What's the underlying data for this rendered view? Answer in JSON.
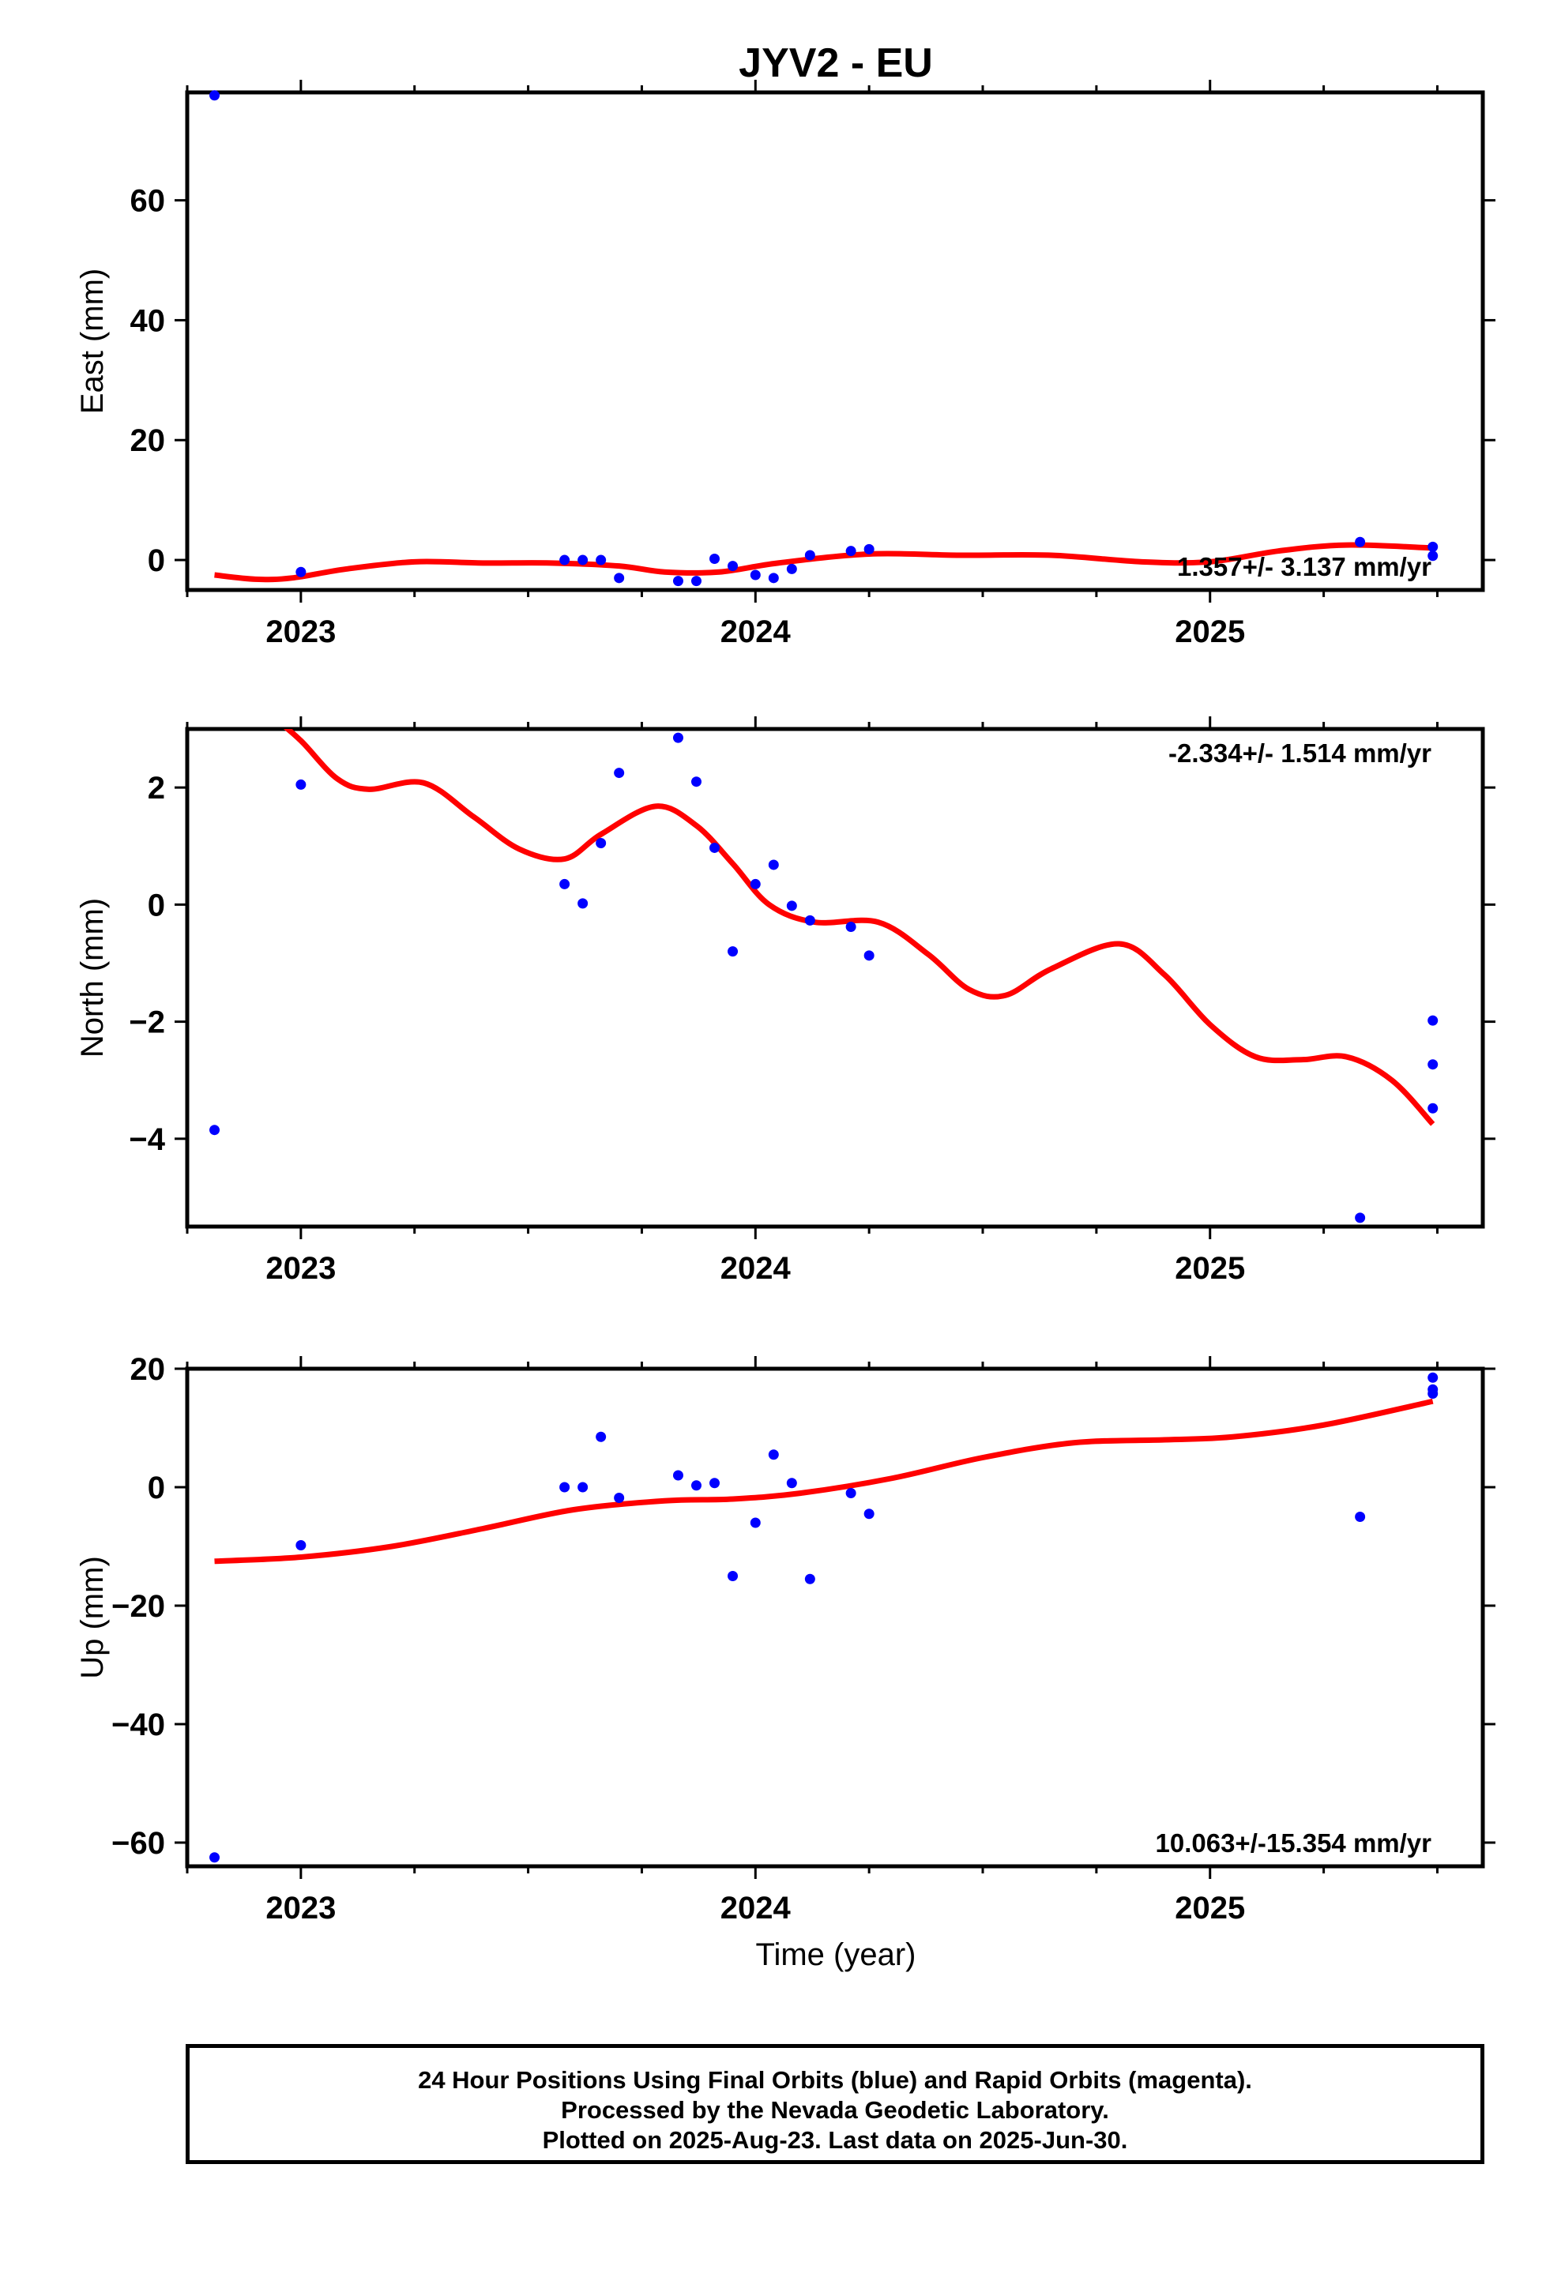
{
  "title": "JYV2 - EU",
  "x_label": "Time (year)",
  "colors": {
    "final_orbits": "#0000ff",
    "fit_line": "#ff0000",
    "axes": "#000000"
  },
  "footer": {
    "line1": "24 Hour Positions Using Final Orbits (blue) and Rapid Orbits (magenta).",
    "line2": "Processed by the Nevada Geodetic Laboratory.",
    "line3": "Plotted on 2025-Aug-23. Last data on 2025-Jun-30."
  },
  "chart_data": [
    {
      "type": "scatter",
      "id": "east",
      "ylabel": "East (mm)",
      "xlim": [
        2022.75,
        2025.6
      ],
      "ylim": [
        -5,
        78
      ],
      "yticks": [
        0,
        20,
        40,
        60
      ],
      "xticks": [
        2023,
        2024,
        2025
      ],
      "rate": "1.357+/- 3.137 mm/yr",
      "rate_position": "bottom-right",
      "points": [
        [
          2022.81,
          77.5
        ],
        [
          2023.0,
          -2.0
        ],
        [
          2023.58,
          0.0
        ],
        [
          2023.62,
          0.0
        ],
        [
          2023.66,
          0.0
        ],
        [
          2023.7,
          -3.0
        ],
        [
          2023.83,
          -3.5
        ],
        [
          2023.87,
          -3.5
        ],
        [
          2023.91,
          0.2
        ],
        [
          2023.95,
          -1.0
        ],
        [
          2024.0,
          -2.5
        ],
        [
          2024.04,
          -3.0
        ],
        [
          2024.08,
          -1.5
        ],
        [
          2024.12,
          0.8
        ],
        [
          2024.21,
          1.5
        ],
        [
          2024.25,
          1.8
        ],
        [
          2025.33,
          3.0
        ],
        [
          2025.49,
          2.2
        ],
        [
          2025.49,
          0.7
        ]
      ],
      "fit": [
        [
          2022.81,
          -2.5
        ],
        [
          2022.9,
          -3.2
        ],
        [
          2022.98,
          -3.0
        ],
        [
          2023.1,
          -1.5
        ],
        [
          2023.25,
          -0.3
        ],
        [
          2023.4,
          -0.5
        ],
        [
          2023.55,
          -0.5
        ],
        [
          2023.7,
          -1.0
        ],
        [
          2023.8,
          -2.0
        ],
        [
          2023.92,
          -2.0
        ],
        [
          2024.05,
          -0.5
        ],
        [
          2024.25,
          1.0
        ],
        [
          2024.45,
          0.8
        ],
        [
          2024.65,
          0.8
        ],
        [
          2024.85,
          -0.3
        ],
        [
          2025.0,
          -0.3
        ],
        [
          2025.15,
          1.5
        ],
        [
          2025.3,
          2.5
        ],
        [
          2025.49,
          2.0
        ]
      ]
    },
    {
      "type": "scatter",
      "id": "north",
      "ylabel": "North (mm)",
      "xlim": [
        2022.75,
        2025.6
      ],
      "ylim": [
        -5.5,
        3.0
      ],
      "yticks": [
        -4,
        -2,
        0,
        2
      ],
      "xticks": [
        2023,
        2024,
        2025
      ],
      "rate": "-2.334+/- 1.514 mm/yr",
      "rate_position": "top-right",
      "points": [
        [
          2022.81,
          -3.85
        ],
        [
          2023.0,
          2.05
        ],
        [
          2023.58,
          0.35
        ],
        [
          2023.62,
          0.02
        ],
        [
          2023.66,
          1.05
        ],
        [
          2023.7,
          2.25
        ],
        [
          2023.83,
          2.85
        ],
        [
          2023.87,
          2.1
        ],
        [
          2023.91,
          0.97
        ],
        [
          2023.95,
          -0.8
        ],
        [
          2024.0,
          0.35
        ],
        [
          2024.04,
          0.68
        ],
        [
          2024.08,
          -0.02
        ],
        [
          2024.12,
          -0.27
        ],
        [
          2024.21,
          -0.38
        ],
        [
          2024.25,
          -0.87
        ],
        [
          2025.33,
          -5.35
        ],
        [
          2025.49,
          -1.98
        ],
        [
          2025.49,
          -2.73
        ],
        [
          2025.49,
          -3.48
        ]
      ],
      "fit": [
        [
          2022.94,
          3.2
        ],
        [
          2023.0,
          2.8
        ],
        [
          2023.08,
          2.15
        ],
        [
          2023.15,
          1.97
        ],
        [
          2023.27,
          2.08
        ],
        [
          2023.38,
          1.5
        ],
        [
          2023.48,
          0.95
        ],
        [
          2023.58,
          0.78
        ],
        [
          2023.66,
          1.2
        ],
        [
          2023.78,
          1.68
        ],
        [
          2023.87,
          1.35
        ],
        [
          2023.95,
          0.7
        ],
        [
          2024.03,
          0.0
        ],
        [
          2024.13,
          -0.3
        ],
        [
          2024.27,
          -0.3
        ],
        [
          2024.38,
          -0.85
        ],
        [
          2024.47,
          -1.45
        ],
        [
          2024.55,
          -1.55
        ],
        [
          2024.65,
          -1.1
        ],
        [
          2024.8,
          -0.67
        ],
        [
          2024.9,
          -1.2
        ],
        [
          2025.0,
          -2.05
        ],
        [
          2025.1,
          -2.6
        ],
        [
          2025.2,
          -2.65
        ],
        [
          2025.3,
          -2.6
        ],
        [
          2025.4,
          -3.0
        ],
        [
          2025.49,
          -3.75
        ]
      ]
    },
    {
      "type": "scatter",
      "id": "up",
      "ylabel": "Up (mm)",
      "xlabel": "Time (year)",
      "xlim": [
        2022.75,
        2025.6
      ],
      "ylim": [
        -64,
        20
      ],
      "yticks": [
        -60,
        -40,
        -20,
        0,
        20
      ],
      "xticks": [
        2023,
        2024,
        2025
      ],
      "rate": "10.063+/-15.354 mm/yr",
      "rate_position": "bottom-right",
      "points": [
        [
          2022.81,
          -62.5
        ],
        [
          2023.0,
          -9.8
        ],
        [
          2023.58,
          0.0
        ],
        [
          2023.62,
          0.0
        ],
        [
          2023.66,
          8.5
        ],
        [
          2023.7,
          -1.8
        ],
        [
          2023.83,
          2.0
        ],
        [
          2023.87,
          0.3
        ],
        [
          2023.91,
          0.7
        ],
        [
          2023.95,
          -15.0
        ],
        [
          2024.0,
          -6.0
        ],
        [
          2024.04,
          5.5
        ],
        [
          2024.08,
          0.7
        ],
        [
          2024.12,
          -15.5
        ],
        [
          2024.21,
          -1.0
        ],
        [
          2024.25,
          -4.5
        ],
        [
          2025.33,
          -5.0
        ],
        [
          2025.49,
          18.5
        ],
        [
          2025.49,
          16.5
        ],
        [
          2025.49,
          15.8
        ]
      ],
      "fit": [
        [
          2022.81,
          -12.5
        ],
        [
          2023.0,
          -11.8
        ],
        [
          2023.2,
          -10.0
        ],
        [
          2023.4,
          -7.0
        ],
        [
          2023.6,
          -3.8
        ],
        [
          2023.8,
          -2.3
        ],
        [
          2023.95,
          -2.0
        ],
        [
          2024.1,
          -1.0
        ],
        [
          2024.3,
          1.5
        ],
        [
          2024.5,
          5.0
        ],
        [
          2024.7,
          7.5
        ],
        [
          2024.9,
          8.0
        ],
        [
          2025.05,
          8.5
        ],
        [
          2025.25,
          10.5
        ],
        [
          2025.49,
          14.5
        ]
      ]
    }
  ]
}
